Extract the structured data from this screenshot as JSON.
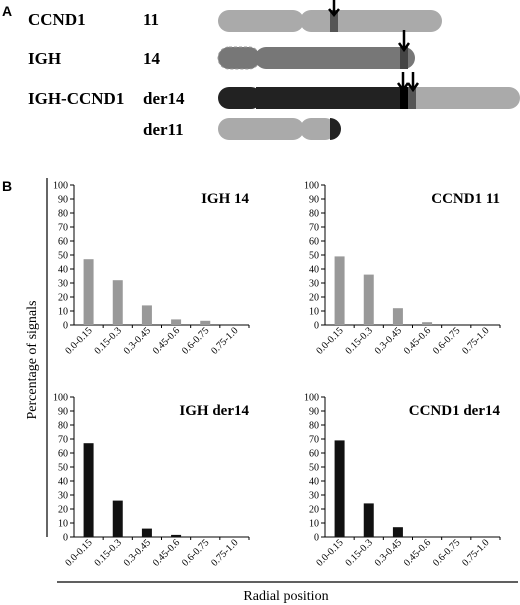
{
  "panel_a": {
    "letter": "A",
    "rows": [
      {
        "gene": "CCND1",
        "chrom": "11"
      },
      {
        "gene": "IGH",
        "chrom": "14"
      },
      {
        "gene": "IGH-CCND1",
        "chrom": "der14"
      },
      {
        "gene": "",
        "chrom": "der11"
      }
    ],
    "colors": {
      "light": "#aaaaaa",
      "medium": "#777777",
      "dark": "#222222",
      "marker": "#555555"
    }
  },
  "panel_b": {
    "letter": "B"
  },
  "chart_data": [
    {
      "type": "bar",
      "title": "IGH 14",
      "categories": [
        "0.0-0.15",
        "0.15-0.3",
        "0.3-0.45",
        "0.45-0.6",
        "0.6-0.75",
        "0.75-1.0"
      ],
      "values": [
        47,
        32,
        14,
        4,
        3,
        0
      ],
      "ylim": [
        0,
        100
      ],
      "yticks": [
        0,
        10,
        20,
        30,
        40,
        50,
        60,
        70,
        80,
        90,
        100
      ],
      "color": "#999999"
    },
    {
      "type": "bar",
      "title": "CCND1 11",
      "categories": [
        "0.0-0.15",
        "0.15-0.3",
        "0.3-0.45",
        "0.45-0.6",
        "0.6-0.75",
        "0.75-1.0"
      ],
      "values": [
        49,
        36,
        12,
        2,
        0,
        0
      ],
      "ylim": [
        0,
        100
      ],
      "yticks": [
        0,
        10,
        20,
        30,
        40,
        50,
        60,
        70,
        80,
        90,
        100
      ],
      "color": "#999999"
    },
    {
      "type": "bar",
      "title": "IGH der14",
      "categories": [
        "0.0-0.15",
        "0.15-0.3",
        "0.3-0.45",
        "0.45-0.6",
        "0.6-0.75",
        "0.75-1.0"
      ],
      "values": [
        67,
        26,
        6,
        1.5,
        0,
        0
      ],
      "ylim": [
        0,
        100
      ],
      "yticks": [
        0,
        10,
        20,
        30,
        40,
        50,
        60,
        70,
        80,
        90,
        100
      ],
      "color": "#111111"
    },
    {
      "type": "bar",
      "title": "CCND1 der14",
      "categories": [
        "0.0-0.15",
        "0.15-0.3",
        "0.3-0.45",
        "0.45-0.6",
        "0.6-0.75",
        "0.75-1.0"
      ],
      "values": [
        69,
        24,
        7,
        0,
        0,
        0
      ],
      "ylim": [
        0,
        100
      ],
      "yticks": [
        0,
        10,
        20,
        30,
        40,
        50,
        60,
        70,
        80,
        90,
        100
      ],
      "color": "#111111"
    }
  ],
  "shared_axes": {
    "ylabel": "Percentage of  signals",
    "xlabel": "Radial position"
  }
}
